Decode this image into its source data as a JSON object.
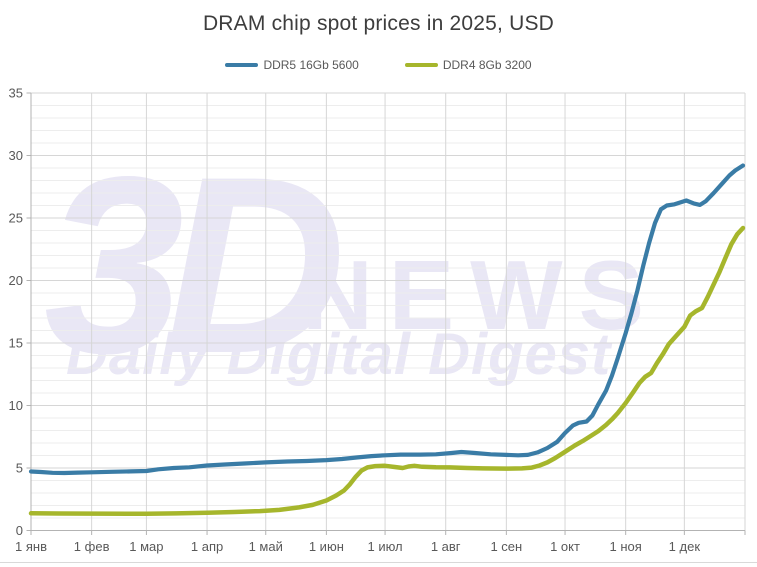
{
  "title": "DRAM chip spot prices in 2025, USD",
  "legend": {
    "items": [
      {
        "label": "DDR5 16Gb 5600",
        "color": "#3a7ca6"
      },
      {
        "label": "DDR4 8Gb 3200",
        "color": "#a6b62c"
      }
    ]
  },
  "watermark": {
    "line1": "3D",
    "line2": "NEWS",
    "line3": "Daily Digital Digest",
    "color": "#e9e7f5"
  },
  "colors": {
    "title_text": "#3d3d3d",
    "tick_text": "#595959",
    "minor_grid": "#ededed",
    "major_grid": "#d6d6d6",
    "axis_line": "#b3b3b3",
    "ddr5_line": "#3a7ca6",
    "ddr4_line": "#a6b62c"
  },
  "chart_data": {
    "type": "line",
    "title": "DRAM chip spot prices in 2025, USD",
    "xlabel": "",
    "ylabel": "",
    "x_unit": "day-of-year 2025",
    "xlim": [
      1,
      366
    ],
    "ylim": [
      0,
      35
    ],
    "grid": {
      "y_minor_step": 1,
      "y_major_step": 5,
      "x_lines": "month-starts"
    },
    "legend_position": "top-center",
    "x_ticks": [
      {
        "day": 1,
        "label": "1 янв"
      },
      {
        "day": 32,
        "label": "1 фев"
      },
      {
        "day": 60,
        "label": "1 мар"
      },
      {
        "day": 91,
        "label": "1 апр"
      },
      {
        "day": 121,
        "label": "1 май"
      },
      {
        "day": 152,
        "label": "1 июн"
      },
      {
        "day": 182,
        "label": "1 июл"
      },
      {
        "day": 213,
        "label": "1 авг"
      },
      {
        "day": 244,
        "label": "1 сен"
      },
      {
        "day": 274,
        "label": "1 окт"
      },
      {
        "day": 305,
        "label": "1 ноя"
      },
      {
        "day": 335,
        "label": "1 дек"
      },
      {
        "day": 366,
        "label": ""
      }
    ],
    "y_ticks": [
      {
        "value": 0,
        "label": "0"
      },
      {
        "value": 5,
        "label": "5"
      },
      {
        "value": 10,
        "label": "10"
      },
      {
        "value": 15,
        "label": "15"
      },
      {
        "value": 20,
        "label": "20"
      },
      {
        "value": 25,
        "label": "25"
      },
      {
        "value": 30,
        "label": "30"
      },
      {
        "value": 35,
        "label": "35"
      }
    ],
    "series": [
      {
        "name": "DDR5 16Gb 5600",
        "color": "#3a7ca6",
        "stroke_width": 4.2,
        "points": [
          [
            1,
            4.72
          ],
          [
            6,
            4.68
          ],
          [
            12,
            4.62
          ],
          [
            18,
            4.6
          ],
          [
            25,
            4.63
          ],
          [
            32,
            4.66
          ],
          [
            42,
            4.7
          ],
          [
            52,
            4.73
          ],
          [
            60,
            4.76
          ],
          [
            66,
            4.9
          ],
          [
            74,
            5.0
          ],
          [
            82,
            5.06
          ],
          [
            91,
            5.2
          ],
          [
            100,
            5.28
          ],
          [
            110,
            5.36
          ],
          [
            121,
            5.45
          ],
          [
            132,
            5.52
          ],
          [
            142,
            5.56
          ],
          [
            152,
            5.63
          ],
          [
            160,
            5.72
          ],
          [
            168,
            5.85
          ],
          [
            175,
            5.95
          ],
          [
            182,
            6.02
          ],
          [
            190,
            6.07
          ],
          [
            200,
            6.07
          ],
          [
            208,
            6.1
          ],
          [
            216,
            6.2
          ],
          [
            221,
            6.28
          ],
          [
            228,
            6.2
          ],
          [
            236,
            6.1
          ],
          [
            244,
            6.05
          ],
          [
            250,
            6.02
          ],
          [
            255,
            6.05
          ],
          [
            260,
            6.25
          ],
          [
            265,
            6.6
          ],
          [
            270,
            7.1
          ],
          [
            274,
            7.8
          ],
          [
            278,
            8.4
          ],
          [
            281,
            8.62
          ],
          [
            285,
            8.72
          ],
          [
            288,
            9.2
          ],
          [
            291,
            10.1
          ],
          [
            295,
            11.2
          ],
          [
            298,
            12.4
          ],
          [
            301,
            13.8
          ],
          [
            305,
            15.8
          ],
          [
            308,
            17.4
          ],
          [
            311,
            19.2
          ],
          [
            314,
            21.2
          ],
          [
            317,
            23.0
          ],
          [
            320,
            24.6
          ],
          [
            323,
            25.7
          ],
          [
            326,
            26.0
          ],
          [
            330,
            26.1
          ],
          [
            334,
            26.3
          ],
          [
            336,
            26.4
          ],
          [
            340,
            26.15
          ],
          [
            343,
            26.05
          ],
          [
            346,
            26.35
          ],
          [
            350,
            27.0
          ],
          [
            354,
            27.7
          ],
          [
            358,
            28.4
          ],
          [
            361,
            28.8
          ],
          [
            365,
            29.2
          ]
        ]
      },
      {
        "name": "DDR4 8Gb 3200",
        "color": "#a6b62c",
        "stroke_width": 4.5,
        "points": [
          [
            1,
            1.38
          ],
          [
            15,
            1.36
          ],
          [
            32,
            1.35
          ],
          [
            60,
            1.34
          ],
          [
            75,
            1.37
          ],
          [
            91,
            1.42
          ],
          [
            105,
            1.48
          ],
          [
            118,
            1.55
          ],
          [
            128,
            1.65
          ],
          [
            138,
            1.85
          ],
          [
            145,
            2.05
          ],
          [
            152,
            2.4
          ],
          [
            157,
            2.8
          ],
          [
            161,
            3.2
          ],
          [
            164,
            3.7
          ],
          [
            167,
            4.3
          ],
          [
            170,
            4.8
          ],
          [
            173,
            5.05
          ],
          [
            177,
            5.15
          ],
          [
            182,
            5.18
          ],
          [
            187,
            5.08
          ],
          [
            191,
            5.0
          ],
          [
            194,
            5.12
          ],
          [
            197,
            5.18
          ],
          [
            201,
            5.1
          ],
          [
            208,
            5.06
          ],
          [
            215,
            5.05
          ],
          [
            224,
            5.0
          ],
          [
            232,
            4.97
          ],
          [
            244,
            4.95
          ],
          [
            252,
            4.97
          ],
          [
            257,
            5.03
          ],
          [
            261,
            5.2
          ],
          [
            265,
            5.45
          ],
          [
            269,
            5.8
          ],
          [
            274,
            6.3
          ],
          [
            279,
            6.8
          ],
          [
            283,
            7.15
          ],
          [
            287,
            7.55
          ],
          [
            291,
            7.95
          ],
          [
            295,
            8.45
          ],
          [
            298,
            8.9
          ],
          [
            301,
            9.4
          ],
          [
            305,
            10.2
          ],
          [
            309,
            11.1
          ],
          [
            312,
            11.8
          ],
          [
            315,
            12.3
          ],
          [
            318,
            12.6
          ],
          [
            321,
            13.4
          ],
          [
            324,
            14.1
          ],
          [
            327,
            14.9
          ],
          [
            331,
            15.6
          ],
          [
            335,
            16.3
          ],
          [
            338,
            17.2
          ],
          [
            341,
            17.55
          ],
          [
            344,
            17.8
          ],
          [
            347,
            18.7
          ],
          [
            350,
            19.7
          ],
          [
            353,
            20.7
          ],
          [
            356,
            21.8
          ],
          [
            359,
            22.9
          ],
          [
            362,
            23.7
          ],
          [
            365,
            24.2
          ]
        ]
      }
    ]
  }
}
